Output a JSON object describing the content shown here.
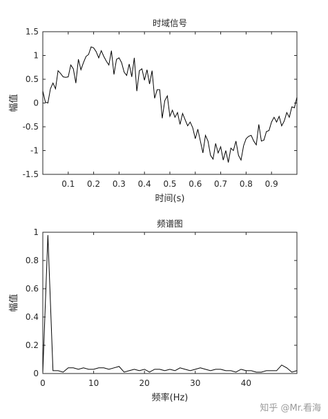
{
  "chart_data": [
    {
      "type": "line",
      "title": "时域信号",
      "xlabel": "时间(s)",
      "ylabel": "幅值",
      "xlim": [
        0,
        1
      ],
      "ylim": [
        -1.5,
        1.5
      ],
      "xticks": [
        "0.1",
        "0.2",
        "0.3",
        "0.4",
        "0.5",
        "0.6",
        "0.7",
        "0.8",
        "0.9"
      ],
      "xtick_values": [
        0.1,
        0.2,
        0.3,
        0.4,
        0.5,
        0.6,
        0.7,
        0.8,
        0.9
      ],
      "yticks": [
        "-1.5",
        "-1",
        "-0.5",
        "0",
        "0.5",
        "1",
        "1.5"
      ],
      "ytick_values": [
        -1.5,
        -1,
        -0.5,
        0,
        0.5,
        1,
        1.5
      ],
      "grid": false,
      "series": [
        {
          "x": [
            0.0,
            0.01,
            0.02,
            0.03,
            0.04,
            0.05,
            0.06,
            0.07,
            0.08,
            0.09,
            0.1,
            0.11,
            0.12,
            0.13,
            0.14,
            0.15,
            0.16,
            0.17,
            0.18,
            0.19,
            0.2,
            0.21,
            0.22,
            0.23,
            0.24,
            0.25,
            0.26,
            0.27,
            0.28,
            0.29,
            0.3,
            0.31,
            0.32,
            0.33,
            0.34,
            0.35,
            0.36,
            0.37,
            0.38,
            0.39,
            0.4,
            0.41,
            0.42,
            0.43,
            0.44,
            0.45,
            0.46,
            0.47,
            0.48,
            0.49,
            0.5,
            0.51,
            0.52,
            0.53,
            0.54,
            0.55,
            0.56,
            0.57,
            0.58,
            0.59,
            0.6,
            0.61,
            0.62,
            0.63,
            0.64,
            0.65,
            0.66,
            0.67,
            0.68,
            0.69,
            0.7,
            0.71,
            0.72,
            0.73,
            0.74,
            0.75,
            0.76,
            0.77,
            0.78,
            0.79,
            0.8,
            0.81,
            0.82,
            0.83,
            0.84,
            0.85,
            0.86,
            0.87,
            0.88,
            0.89,
            0.9,
            0.91,
            0.92,
            0.93,
            0.94,
            0.95,
            0.96,
            0.97,
            0.98,
            0.99,
            1.0
          ],
          "y": [
            0.25,
            0.02,
            0.0,
            0.3,
            0.42,
            0.3,
            0.68,
            0.62,
            0.55,
            0.54,
            0.55,
            0.8,
            0.72,
            0.42,
            0.92,
            0.7,
            0.85,
            0.98,
            1.02,
            1.18,
            1.16,
            1.08,
            0.95,
            1.1,
            0.98,
            0.88,
            0.8,
            1.1,
            0.6,
            0.92,
            0.95,
            0.85,
            0.65,
            0.58,
            0.82,
            0.55,
            0.95,
            0.25,
            0.68,
            0.72,
            0.48,
            0.7,
            0.4,
            0.68,
            0.1,
            0.28,
            0.28,
            -0.32,
            0.05,
            0.15,
            -0.28,
            -0.15,
            -0.3,
            -0.2,
            -0.45,
            -0.22,
            -0.35,
            -0.48,
            -0.4,
            -0.52,
            -0.75,
            -0.55,
            -0.8,
            -1.05,
            -0.68,
            -0.8,
            -1.1,
            -1.18,
            -0.85,
            -1.05,
            -0.92,
            -1.2,
            -1.0,
            -1.25,
            -0.95,
            -1.0,
            -0.8,
            -1.1,
            -1.2,
            -0.9,
            -0.75,
            -0.7,
            -0.68,
            -0.8,
            -0.88,
            -0.45,
            -0.8,
            -0.78,
            -0.6,
            -0.58,
            -0.4,
            -0.3,
            -0.4,
            -0.28,
            -0.48,
            -0.38,
            -0.2,
            -0.3,
            -0.08,
            -0.1,
            0.12
          ]
        }
      ]
    },
    {
      "type": "line",
      "title": "频谱图",
      "xlabel": "频率(Hz)",
      "ylabel": "幅值",
      "xlim": [
        0,
        50
      ],
      "ylim": [
        0,
        1
      ],
      "xticks": [
        "0",
        "10",
        "20",
        "30",
        "40"
      ],
      "xtick_values": [
        0,
        10,
        20,
        30,
        40
      ],
      "yticks": [
        "0",
        "0.2",
        "0.4",
        "0.6",
        "0.8",
        "1"
      ],
      "ytick_values": [
        0,
        0.2,
        0.4,
        0.6,
        0.8,
        1
      ],
      "grid": false,
      "series": [
        {
          "x": [
            0,
            1,
            2,
            3,
            4,
            5,
            6,
            7,
            8,
            9,
            10,
            11,
            12,
            13,
            14,
            15,
            16,
            17,
            18,
            19,
            20,
            21,
            22,
            23,
            24,
            25,
            26,
            27,
            28,
            29,
            30,
            31,
            32,
            33,
            34,
            35,
            36,
            37,
            38,
            39,
            40,
            41,
            42,
            43,
            44,
            45,
            46,
            47,
            48,
            49,
            50
          ],
          "y": [
            0.01,
            0.98,
            0.02,
            0.02,
            0.01,
            0.04,
            0.04,
            0.03,
            0.04,
            0.03,
            0.03,
            0.04,
            0.04,
            0.03,
            0.04,
            0.05,
            0.01,
            0.02,
            0.03,
            0.02,
            0.03,
            0.01,
            0.03,
            0.03,
            0.02,
            0.03,
            0.02,
            0.04,
            0.03,
            0.02,
            0.03,
            0.04,
            0.03,
            0.02,
            0.03,
            0.03,
            0.02,
            0.02,
            0.01,
            0.03,
            0.02,
            0.02,
            0.01,
            0.01,
            0.02,
            0.02,
            0.02,
            0.06,
            0.04,
            0.01,
            0.02
          ]
        }
      ]
    }
  ],
  "watermark": "知乎 @Mr.看海"
}
